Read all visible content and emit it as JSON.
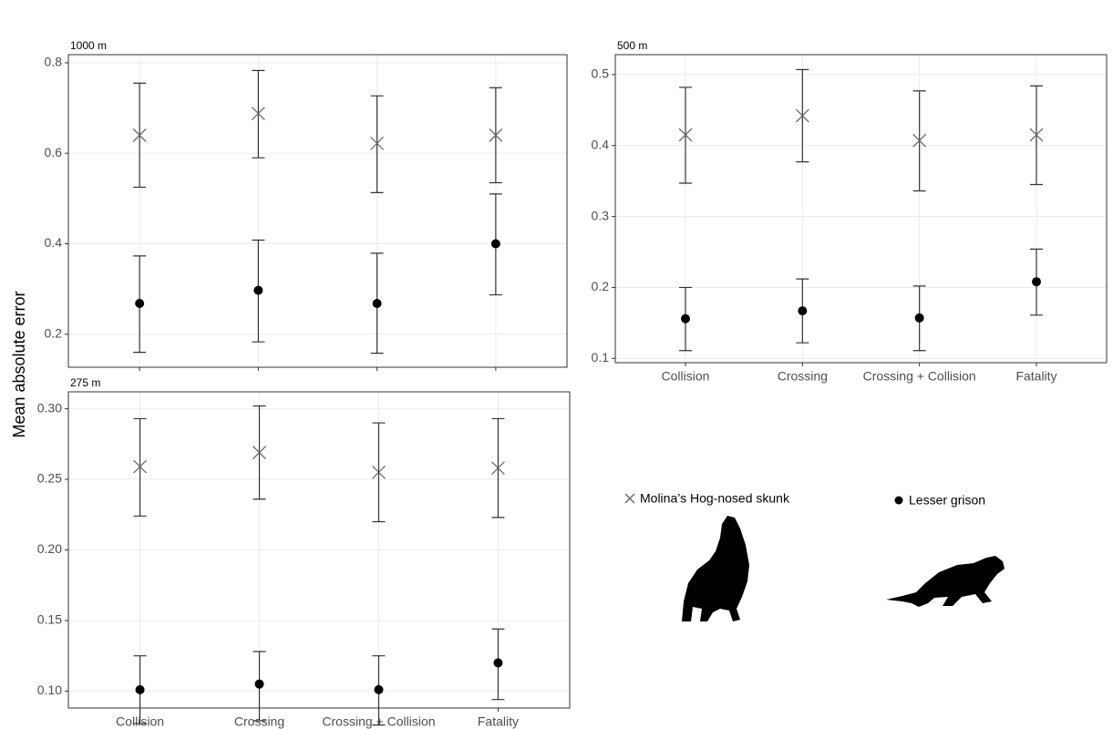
{
  "y_label": "Mean absolute error",
  "legend": {
    "items": [
      "Molina’s Hog-nosed skunk",
      "Lesser grison"
    ]
  },
  "chart_data": [
    {
      "type": "errorbar",
      "title": "1000 m",
      "categories": [
        null,
        null,
        null,
        null
      ],
      "ylim": [
        0.127,
        0.818
      ],
      "yticks": [
        0.2,
        0.4,
        0.6,
        0.8
      ],
      "grid": true,
      "series": [
        {
          "marker": "x",
          "color": "#6b6b6b",
          "values": [
            0.64,
            0.688,
            0.622,
            0.64
          ],
          "lower": [
            0.525,
            0.59,
            0.513,
            0.535
          ],
          "upper": [
            0.755,
            0.783,
            0.727,
            0.745
          ]
        },
        {
          "marker": "dot",
          "color": "#000000",
          "values": [
            0.268,
            0.297,
            0.268,
            0.4
          ],
          "lower": [
            0.16,
            0.183,
            0.158,
            0.287
          ],
          "upper": [
            0.373,
            0.408,
            0.379,
            0.51
          ]
        }
      ]
    },
    {
      "type": "errorbar",
      "title": "500 m",
      "categories": [
        "Collision",
        "Crossing",
        "Crossing + Collision",
        "Fatality"
      ],
      "ylim": [
        0.094,
        0.528
      ],
      "yticks": [
        0.1,
        0.2,
        0.3,
        0.4,
        0.5
      ],
      "grid": true,
      "series": [
        {
          "marker": "x",
          "color": "#6b6b6b",
          "values": [
            0.415,
            0.442,
            0.407,
            0.415
          ],
          "lower": [
            0.347,
            0.377,
            0.336,
            0.345
          ],
          "upper": [
            0.482,
            0.507,
            0.477,
            0.484
          ]
        },
        {
          "marker": "dot",
          "color": "#000000",
          "values": [
            0.156,
            0.167,
            0.157,
            0.208
          ],
          "lower": [
            0.111,
            0.122,
            0.111,
            0.161
          ],
          "upper": [
            0.2,
            0.212,
            0.202,
            0.254
          ]
        }
      ]
    },
    {
      "type": "errorbar",
      "title": "275 m",
      "categories": [
        "Collision",
        "Crossing",
        "Crossing + Collision",
        "Fatality"
      ],
      "ylim": [
        0.088,
        0.312
      ],
      "yticks": [
        {
          "value": 0.1,
          "label": "0.10"
        },
        0.15,
        {
          "value": 0.2,
          "label": "0.20"
        },
        0.25,
        {
          "value": 0.3,
          "label": "0.30"
        }
      ],
      "grid": true,
      "series": [
        {
          "marker": "x",
          "color": "#6b6b6b",
          "values": [
            0.259,
            0.269,
            0.255,
            0.258
          ],
          "lower": [
            0.224,
            0.236,
            0.22,
            0.223
          ],
          "upper": [
            0.293,
            0.302,
            0.29,
            0.293
          ]
        },
        {
          "marker": "dot",
          "color": "#000000",
          "values": [
            0.101,
            0.105,
            0.101,
            0.12
          ],
          "lower": [
            0.077,
            0.079,
            0.076,
            0.094
          ],
          "upper": [
            0.125,
            0.128,
            0.125,
            0.144
          ]
        }
      ]
    }
  ]
}
